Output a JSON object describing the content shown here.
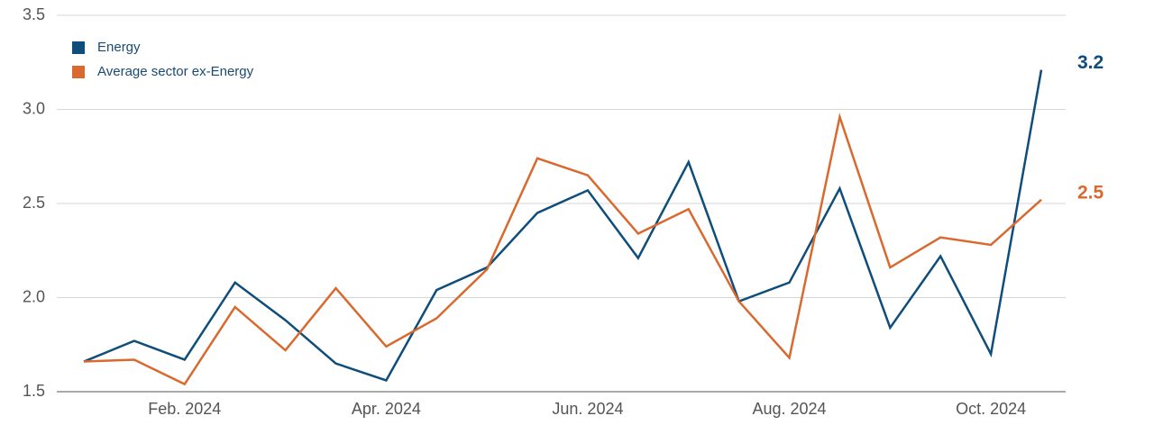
{
  "chart_data": {
    "type": "line",
    "categories": [
      null,
      null,
      "Feb. 2024",
      null,
      null,
      null,
      "Apr. 2024",
      null,
      null,
      null,
      "Jun. 2024",
      null,
      null,
      null,
      "Aug. 2024",
      null,
      null,
      null,
      "Oct. 2024",
      null
    ],
    "series": [
      {
        "name": "Energy",
        "color": "#0f4d7a",
        "values": [
          1.66,
          1.77,
          1.67,
          2.08,
          1.88,
          1.65,
          1.56,
          2.04,
          2.16,
          2.45,
          2.57,
          2.21,
          2.72,
          1.98,
          2.08,
          2.58,
          1.84,
          2.22,
          1.7,
          3.21
        ],
        "value_labels": [
          null,
          null,
          null,
          null,
          null,
          null,
          null,
          null,
          null,
          null,
          null,
          null,
          null,
          null,
          null,
          null,
          null,
          null,
          null,
          "3.2"
        ]
      },
      {
        "name": "Average sector ex-Energy",
        "color": "#d9692e",
        "values": [
          1.66,
          1.67,
          1.54,
          1.95,
          1.72,
          2.05,
          1.74,
          1.89,
          2.15,
          2.74,
          2.65,
          2.34,
          2.47,
          1.98,
          1.68,
          2.96,
          2.16,
          2.32,
          2.28,
          2.52
        ],
        "value_labels": [
          null,
          null,
          null,
          null,
          null,
          null,
          null,
          null,
          null,
          null,
          null,
          null,
          null,
          null,
          null,
          null,
          null,
          null,
          null,
          "2.5"
        ]
      }
    ],
    "ylim": [
      1.5,
      3.5
    ],
    "yticks": [
      1.5,
      {
        "value": 2,
        "label": "2.0"
      },
      2.5,
      {
        "value": 3,
        "label": "3.0"
      },
      3.5
    ],
    "grid": true,
    "legend": "upper left"
  }
}
